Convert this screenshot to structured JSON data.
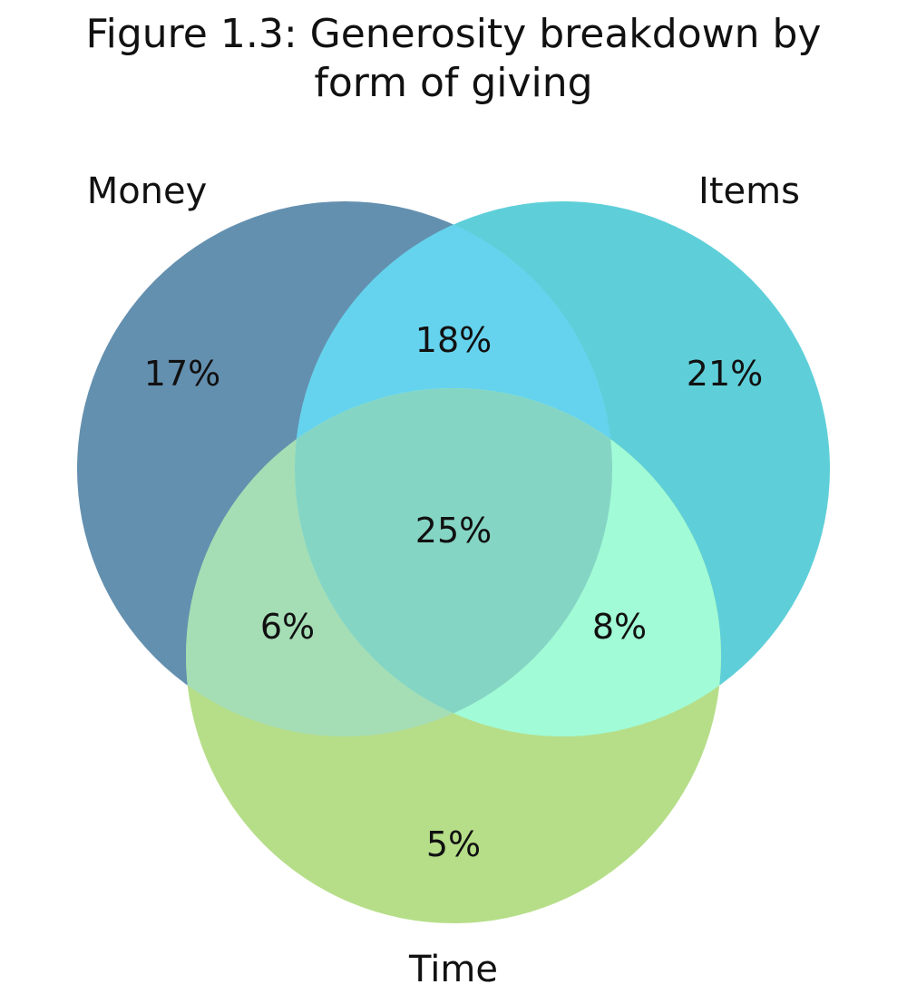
{
  "figure": {
    "title_line1": "Figure 1.3: Generosity breakdown by",
    "title_line2": "form of giving"
  },
  "chart_data": {
    "type": "venn",
    "title": "Figure 1.3: Generosity breakdown by form of giving",
    "sets": [
      {
        "key": "money",
        "name": "Money",
        "color": "#6490b0"
      },
      {
        "key": "items",
        "name": "Items",
        "color": "#5ecfd9"
      },
      {
        "key": "time",
        "name": "Time",
        "color": "#b6de89"
      }
    ],
    "regions": [
      {
        "key": "money_only",
        "sets": [
          "Money"
        ],
        "label": "17%",
        "value": 17
      },
      {
        "key": "items_only",
        "sets": [
          "Items"
        ],
        "label": "21%",
        "value": 21
      },
      {
        "key": "time_only",
        "sets": [
          "Time"
        ],
        "label": "5%",
        "value": 5
      },
      {
        "key": "money_items",
        "sets": [
          "Money",
          "Items"
        ],
        "label": "18%",
        "value": 18
      },
      {
        "key": "money_time",
        "sets": [
          "Money",
          "Time"
        ],
        "label": "6%",
        "value": 6
      },
      {
        "key": "items_time",
        "sets": [
          "Items",
          "Time"
        ],
        "label": "8%",
        "value": 8
      },
      {
        "key": "all",
        "sets": [
          "Money",
          "Items",
          "Time"
        ],
        "label": "25%",
        "value": 25
      }
    ],
    "region_colors": {
      "money_items": "#66d3ee",
      "money_time": "#a5ddb5",
      "items_time": "#a1fbd6",
      "all": "#85d5c4"
    }
  }
}
